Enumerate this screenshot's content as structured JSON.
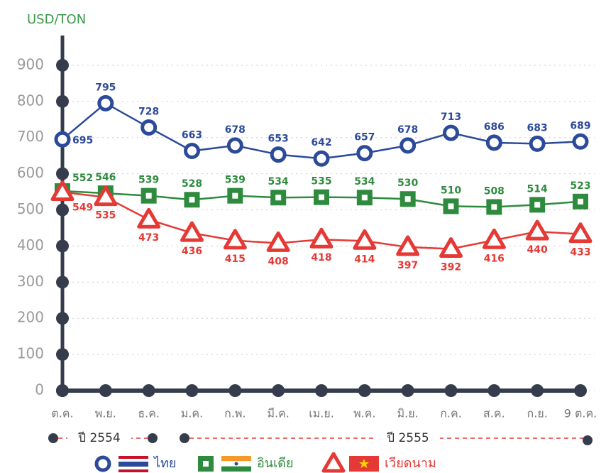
{
  "chart_data": {
    "type": "line",
    "y_axis_label": "USD/TON",
    "categories": [
      "ต.ค.",
      "พ.ย.",
      "ธ.ค.",
      "ม.ค.",
      "ก.พ.",
      "มี.ค.",
      "เม.ย.",
      "พ.ค.",
      "มิ.ย.",
      "ก.ค.",
      "ส.ค.",
      "ก.ย.",
      "9 ต.ค."
    ],
    "series": [
      {
        "name": "ไทย",
        "color": "#2c4a9a",
        "marker": "circle",
        "values": [
          695,
          795,
          728,
          663,
          678,
          653,
          642,
          657,
          678,
          713,
          686,
          683,
          689
        ]
      },
      {
        "name": "อินเดีย",
        "color": "#2e8b3e",
        "marker": "square",
        "values": [
          552,
          546,
          539,
          528,
          539,
          534,
          535,
          534,
          530,
          510,
          508,
          514,
          523
        ]
      },
      {
        "name": "เวียดนาม",
        "color": "#e53935",
        "marker": "triangle",
        "values": [
          549,
          535,
          473,
          436,
          415,
          408,
          418,
          414,
          397,
          392,
          416,
          440,
          433
        ]
      }
    ],
    "year_labels": [
      "ปี 2554",
      "ปี 2555"
    ],
    "ylim": [
      0,
      950
    ],
    "yticks": [
      0,
      100,
      200,
      300,
      400,
      500,
      600,
      700,
      800,
      900
    ],
    "grid": true
  }
}
